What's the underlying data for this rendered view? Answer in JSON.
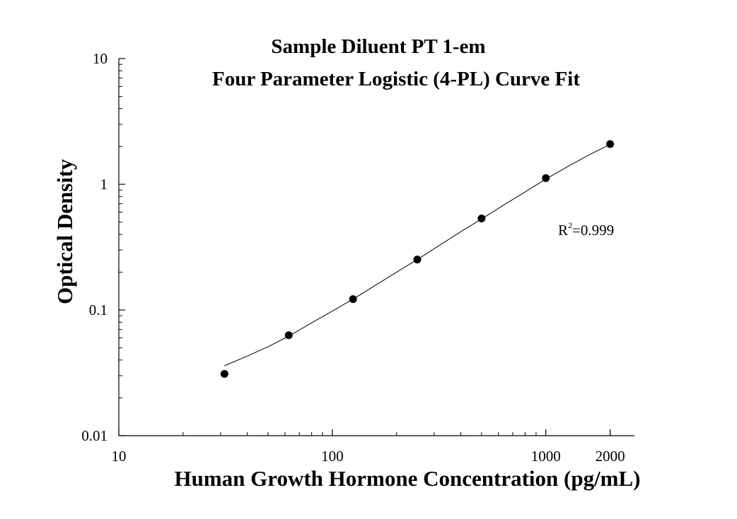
{
  "chart_data": {
    "type": "scatter",
    "title": "Sample Diluent PT 1-em",
    "subtitle": "Four Parameter Logistic (4-PL) Curve Fit",
    "xlabel": "Human Growth Hormone Concentration (pg/mL)",
    "ylabel": "Optical Density",
    "x_scale": "log",
    "y_scale": "log",
    "xlim": [
      10,
      2600
    ],
    "ylim": [
      0.01,
      10
    ],
    "x_ticks": [
      {
        "value": 10,
        "label": "10"
      },
      {
        "value": 100,
        "label": "100"
      },
      {
        "value": 1000,
        "label": "1000"
      },
      {
        "value": 2000,
        "label": "2000"
      }
    ],
    "y_ticks": [
      {
        "value": 10,
        "label": "10"
      },
      {
        "value": 1,
        "label": "1"
      },
      {
        "value": 0.1,
        "label": "0.1"
      },
      {
        "value": 0.01,
        "label": "0.01"
      }
    ],
    "grid": false,
    "series": [
      {
        "x": [
          31.25,
          62.5,
          125,
          250,
          500,
          1000,
          2000
        ],
        "y": [
          0.031,
          0.063,
          0.122,
          0.252,
          0.535,
          1.12,
          2.09
        ]
      }
    ],
    "fit_curve": {
      "model": "4-PL",
      "x": [
        31.25,
        40,
        50,
        62.5,
        80,
        100,
        125,
        160,
        200,
        250,
        320,
        400,
        500,
        640,
        800,
        1000,
        1300,
        1600,
        2000
      ],
      "y": [
        0.036,
        0.043,
        0.051,
        0.062,
        0.079,
        0.098,
        0.122,
        0.158,
        0.2,
        0.252,
        0.33,
        0.42,
        0.53,
        0.69,
        0.87,
        1.1,
        1.42,
        1.72,
        2.08
      ]
    },
    "annotation": {
      "base": "R",
      "superscript": "2",
      "text": "=0.999"
    }
  }
}
